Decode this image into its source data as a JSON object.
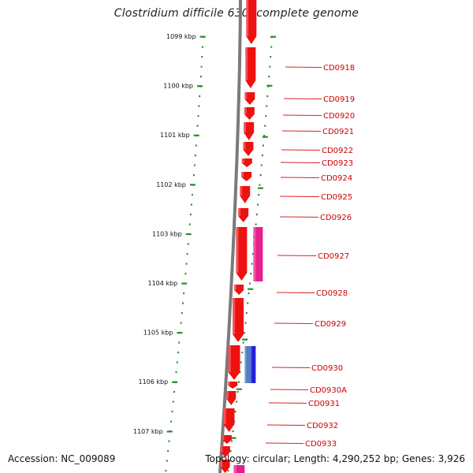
{
  "title": "Clostridium difficile 630, complete genome",
  "footer": {
    "accession": "Accession: NC_009089",
    "topology": "Topology: circular; Length: 4,290,252 bp; Genes: 3,926"
  },
  "colors": {
    "backbone": "#7a7a7a",
    "tick": "#2e8b2e",
    "gene_forward_red": "#ee1111",
    "gene_pink": "#e81e8c",
    "gene_blue": "#1f1fd6",
    "gene_steel": "#4f81bd",
    "label_red": "#cc0000",
    "leader_red": "#dd2222"
  },
  "scale_labels": [
    "1099 kbp",
    "1100 kbp",
    "1101 kbp",
    "1102 kbp",
    "1103 kbp",
    "1104 kbp",
    "1105 kbp",
    "1106 kbp",
    "1107 kbp"
  ],
  "genes": [
    "CD0918",
    "CD0919",
    "CD0920",
    "CD0921",
    "CD0922",
    "CD0923",
    "CD0924",
    "CD0925",
    "CD0926",
    "CD0927",
    "CD0928",
    "CD0929",
    "CD0930",
    "CD0930A",
    "CD0931",
    "CD0932",
    "CD0933"
  ]
}
